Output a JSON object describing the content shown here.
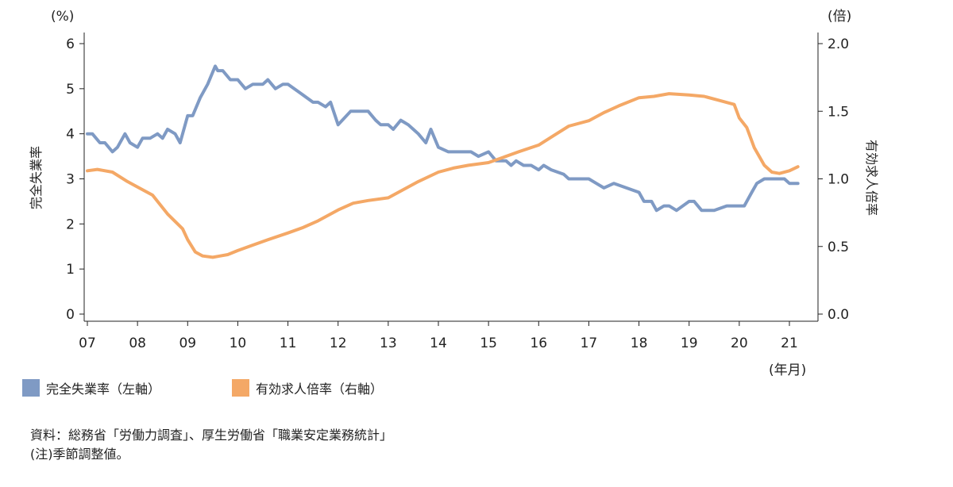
{
  "chart_data": {
    "type": "line",
    "left_unit": "(%)",
    "right_unit": "(倍)",
    "x_unit": "(年月)",
    "left_axis_label": "完全失業率",
    "right_axis_label": "有効求人倍率",
    "left_ylim": [
      0,
      6
    ],
    "right_ylim": [
      0.0,
      2.0
    ],
    "left_ticks": [
      "0",
      "1",
      "2",
      "3",
      "4",
      "5",
      "6"
    ],
    "right_ticks": [
      "0.0",
      "0.5",
      "1.0",
      "1.5",
      "2.0"
    ],
    "x_tick_labels": [
      "07",
      "08",
      "09",
      "10",
      "11",
      "12",
      "13",
      "14",
      "15",
      "16",
      "17",
      "18",
      "19",
      "20",
      "21"
    ],
    "x_range": [
      2007.0,
      2021.17
    ],
    "series": [
      {
        "name": "完全失業率（左軸）",
        "axis": "left",
        "color": "#7f9ac4",
        "x": [
          2007.0,
          2007.1,
          2007.25,
          2007.35,
          2007.5,
          2007.6,
          2007.75,
          2007.85,
          2008.0,
          2008.1,
          2008.25,
          2008.4,
          2008.5,
          2008.6,
          2008.75,
          2008.85,
          2009.0,
          2009.1,
          2009.25,
          2009.4,
          2009.55,
          2009.6,
          2009.7,
          2009.85,
          2010.0,
          2010.15,
          2010.3,
          2010.5,
          2010.6,
          2010.75,
          2010.9,
          2011.0,
          2011.25,
          2011.5,
          2011.6,
          2011.75,
          2011.85,
          2012.0,
          2012.25,
          2012.5,
          2012.6,
          2012.75,
          2012.85,
          2013.0,
          2013.1,
          2013.25,
          2013.4,
          2013.5,
          2013.6,
          2013.75,
          2013.85,
          2014.0,
          2014.2,
          2014.35,
          2014.5,
          2014.65,
          2014.8,
          2015.0,
          2015.15,
          2015.35,
          2015.45,
          2015.55,
          2015.7,
          2015.85,
          2016.0,
          2016.1,
          2016.25,
          2016.5,
          2016.6,
          2016.75,
          2017.0,
          2017.15,
          2017.3,
          2017.5,
          2017.75,
          2018.0,
          2018.1,
          2018.25,
          2018.35,
          2018.5,
          2018.6,
          2018.75,
          2019.0,
          2019.1,
          2019.25,
          2019.5,
          2019.75,
          2019.9,
          2020.0,
          2020.1,
          2020.25,
          2020.35,
          2020.5,
          2020.65,
          2020.75,
          2020.9,
          2021.0,
          2021.17
        ],
        "y": [
          4.0,
          4.0,
          3.8,
          3.8,
          3.6,
          3.7,
          4.0,
          3.8,
          3.7,
          3.9,
          3.9,
          4.0,
          3.9,
          4.1,
          4.0,
          3.8,
          4.4,
          4.4,
          4.8,
          5.1,
          5.5,
          5.4,
          5.4,
          5.2,
          5.2,
          5.0,
          5.1,
          5.1,
          5.2,
          5.0,
          5.1,
          5.1,
          4.9,
          4.7,
          4.7,
          4.6,
          4.7,
          4.2,
          4.5,
          4.5,
          4.5,
          4.3,
          4.2,
          4.2,
          4.1,
          4.3,
          4.2,
          4.1,
          4.0,
          3.8,
          4.1,
          3.7,
          3.6,
          3.6,
          3.6,
          3.6,
          3.5,
          3.6,
          3.4,
          3.4,
          3.3,
          3.4,
          3.3,
          3.3,
          3.2,
          3.3,
          3.2,
          3.1,
          3.0,
          3.0,
          3.0,
          2.9,
          2.8,
          2.9,
          2.8,
          2.7,
          2.5,
          2.5,
          2.3,
          2.4,
          2.4,
          2.3,
          2.5,
          2.5,
          2.3,
          2.3,
          2.4,
          2.4,
          2.4,
          2.4,
          2.7,
          2.9,
          3.0,
          3.0,
          3.0,
          3.0,
          2.9,
          2.9
        ]
      },
      {
        "name": "有効求人倍率（右軸）",
        "axis": "right",
        "color": "#f4a866",
        "x": [
          2007.0,
          2007.2,
          2007.5,
          2007.8,
          2008.0,
          2008.3,
          2008.6,
          2008.9,
          2009.0,
          2009.15,
          2009.3,
          2009.5,
          2009.65,
          2009.8,
          2010.0,
          2010.3,
          2010.6,
          2011.0,
          2011.3,
          2011.6,
          2012.0,
          2012.3,
          2012.6,
          2013.0,
          2013.3,
          2013.6,
          2014.0,
          2014.3,
          2014.6,
          2015.0,
          2015.3,
          2015.6,
          2016.0,
          2016.3,
          2016.6,
          2017.0,
          2017.3,
          2017.6,
          2018.0,
          2018.3,
          2018.6,
          2019.0,
          2019.3,
          2019.6,
          2019.9,
          2020.0,
          2020.15,
          2020.3,
          2020.5,
          2020.65,
          2020.8,
          2021.0,
          2021.17
        ],
        "y": [
          1.06,
          1.07,
          1.05,
          0.98,
          0.94,
          0.88,
          0.74,
          0.63,
          0.55,
          0.46,
          0.43,
          0.42,
          0.43,
          0.44,
          0.47,
          0.51,
          0.55,
          0.6,
          0.64,
          0.69,
          0.77,
          0.82,
          0.84,
          0.86,
          0.92,
          0.98,
          1.05,
          1.08,
          1.1,
          1.12,
          1.16,
          1.2,
          1.25,
          1.32,
          1.39,
          1.43,
          1.49,
          1.54,
          1.6,
          1.61,
          1.63,
          1.62,
          1.61,
          1.58,
          1.55,
          1.45,
          1.38,
          1.23,
          1.1,
          1.05,
          1.04,
          1.06,
          1.09
        ]
      }
    ]
  },
  "legend": [
    {
      "label": "完全失業率（左軸）",
      "color": "#7f9ac4"
    },
    {
      "label": "有効求人倍率（右軸）",
      "color": "#f4a866"
    }
  ],
  "source": {
    "line1": "資料：総務省「労働力調査」、厚生労働省「職業安定業務統計」",
    "line2": "(注)季節調整値。"
  }
}
